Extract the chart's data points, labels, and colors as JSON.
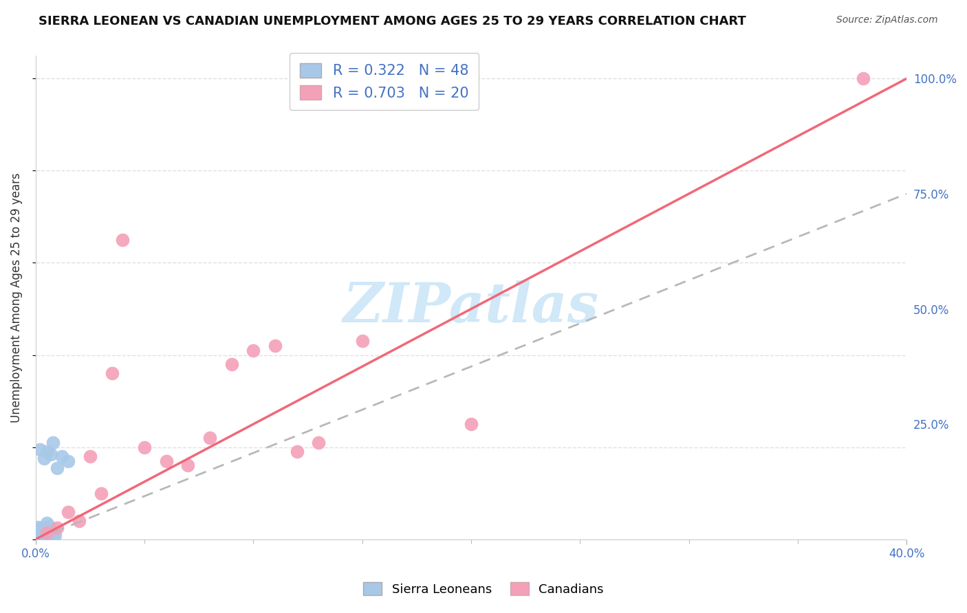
{
  "title": "SIERRA LEONEAN VS CANADIAN UNEMPLOYMENT AMONG AGES 25 TO 29 YEARS CORRELATION CHART",
  "source": "Source: ZipAtlas.com",
  "ylabel": "Unemployment Among Ages 25 to 29 years",
  "xlim": [
    0,
    0.4
  ],
  "ylim": [
    0,
    1.05
  ],
  "sierra_R": 0.322,
  "sierra_N": 48,
  "canadian_R": 0.703,
  "canadian_N": 20,
  "sierra_color": "#a8c8e8",
  "canadian_color": "#f4a0b8",
  "sierra_line_color": "#b8b8b8",
  "canadian_line_color": "#f06878",
  "watermark_color": "#d0e8f8",
  "sl_x": [
    0.001,
    0.002,
    0.003,
    0.001,
    0.004,
    0.002,
    0.005,
    0.003,
    0.001,
    0.006,
    0.002,
    0.004,
    0.001,
    0.003,
    0.005,
    0.002,
    0.001,
    0.006,
    0.003,
    0.004,
    0.007,
    0.002,
    0.005,
    0.001,
    0.008,
    0.003,
    0.002,
    0.004,
    0.001,
    0.009,
    0.006,
    0.003,
    0.007,
    0.002,
    0.004,
    0.008,
    0.005,
    0.001,
    0.003,
    0.006,
    0.01,
    0.004,
    0.002,
    0.007,
    0.012,
    0.005,
    0.008,
    0.015
  ],
  "sl_y": [
    0.005,
    0.008,
    0.003,
    0.01,
    0.006,
    0.012,
    0.004,
    0.015,
    0.007,
    0.009,
    0.002,
    0.018,
    0.011,
    0.005,
    0.013,
    0.02,
    0.008,
    0.003,
    0.016,
    0.006,
    0.022,
    0.01,
    0.004,
    0.014,
    0.007,
    0.025,
    0.011,
    0.019,
    0.003,
    0.008,
    0.03,
    0.013,
    0.005,
    0.021,
    0.009,
    0.016,
    0.035,
    0.027,
    0.012,
    0.006,
    0.155,
    0.175,
    0.195,
    0.185,
    0.18,
    0.19,
    0.21,
    0.17
  ],
  "ca_x": [
    0.005,
    0.01,
    0.015,
    0.02,
    0.025,
    0.03,
    0.035,
    0.04,
    0.05,
    0.06,
    0.07,
    0.08,
    0.09,
    0.1,
    0.11,
    0.12,
    0.13,
    0.15,
    0.2,
    0.38
  ],
  "ca_y": [
    0.015,
    0.025,
    0.06,
    0.04,
    0.18,
    0.1,
    0.36,
    0.65,
    0.2,
    0.17,
    0.16,
    0.22,
    0.38,
    0.41,
    0.42,
    0.19,
    0.21,
    0.43,
    0.25,
    1.0
  ],
  "sl_line_x": [
    0.0,
    0.4
  ],
  "sl_line_y": [
    0.0,
    0.75
  ],
  "ca_line_x": [
    0.0,
    0.4
  ],
  "ca_line_y": [
    0.0,
    1.0
  ],
  "grid_color": "#e0e0e0",
  "title_fontsize": 13,
  "axis_label_fontsize": 12,
  "tick_color": "#4472c4",
  "ylabel_color": "#333333"
}
